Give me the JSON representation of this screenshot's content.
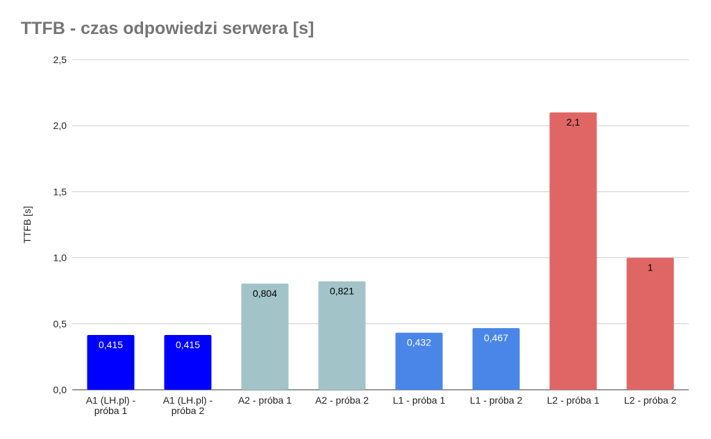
{
  "chart_data": {
    "type": "bar",
    "title": "TTFB - czas odpowiedzi serwera [s]",
    "xlabel": "",
    "ylabel": "TTFB [s]",
    "ylim": [
      0,
      2.5
    ],
    "yticks": [
      "0,0",
      "0,5",
      "1,0",
      "1,5",
      "2,0",
      "2,5"
    ],
    "ytick_values": [
      0,
      0.5,
      1.0,
      1.5,
      2.0,
      2.5
    ],
    "grid": true,
    "categories": [
      [
        "A1 (LH.pl) -",
        "próba 1"
      ],
      [
        "A1 (LH.pl) -",
        "próba 2"
      ],
      [
        "A2 - próba 1"
      ],
      [
        "A2 - próba 2"
      ],
      [
        "L1 - próba 1"
      ],
      [
        "L1 - próba 2"
      ],
      [
        "L2 - próba 1"
      ],
      [
        "L2 - próba 2"
      ]
    ],
    "values": [
      0.415,
      0.415,
      0.804,
      0.821,
      0.432,
      0.467,
      2.1,
      1
    ],
    "data_labels": [
      "0,415",
      "0,415",
      "0,804",
      "0,821",
      "0,432",
      "0,467",
      "2,1",
      "1"
    ],
    "colors": [
      "#0000ff",
      "#0000ff",
      "#a2c4c9",
      "#a2c4c9",
      "#4a86e8",
      "#4a86e8",
      "#e06666",
      "#e06666"
    ],
    "label_colors": [
      "#ffffff",
      "#ffffff",
      "#000000",
      "#000000",
      "#ffffff",
      "#ffffff",
      "#000000",
      "#000000"
    ]
  }
}
